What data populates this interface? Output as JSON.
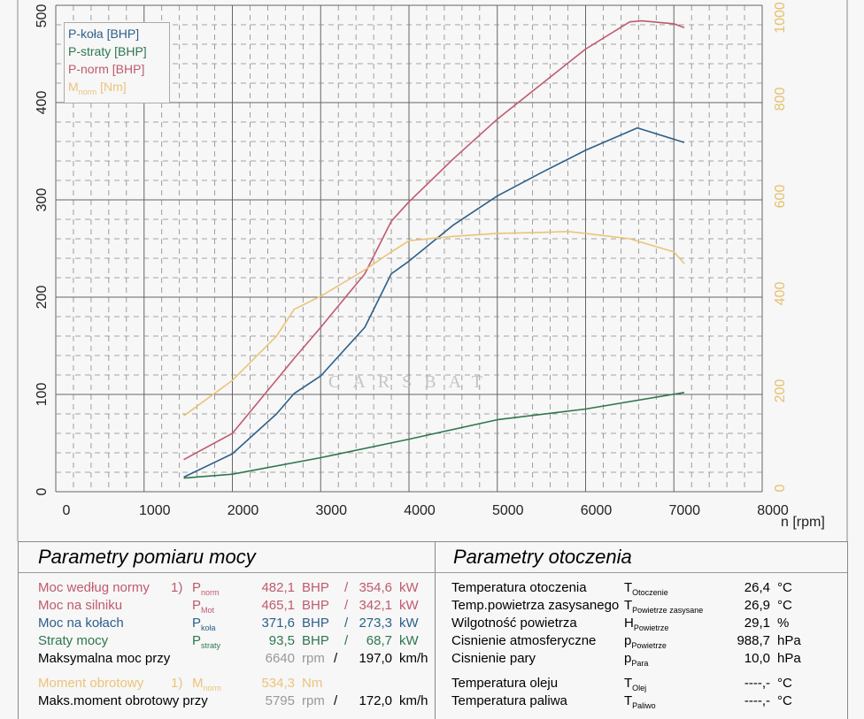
{
  "chart_data": {
    "type": "line",
    "xlabel": "n [rpm]",
    "xlim": [
      0,
      8000
    ],
    "x_ticks": [
      "0",
      "1000",
      "2000",
      "3000",
      "4000",
      "5000",
      "6000",
      "7000",
      "8000"
    ],
    "ylim": [
      0,
      500
    ],
    "y_ticks": [
      "0",
      "100",
      "200",
      "300",
      "400",
      "500"
    ],
    "y2lim": [
      0,
      1000
    ],
    "y2_ticks": [
      "0",
      "200",
      "400",
      "600",
      "800",
      "1000"
    ],
    "grid": true,
    "legend_position": "top-left",
    "legend": [
      "P-koła [BHP]",
      "P-straty [BHP]",
      "P-norm [BHP]",
      "Mnorm [Nm]"
    ],
    "watermark": "CARSBAT",
    "series": [
      {
        "name": "P-koła [BHP]",
        "axis": "left",
        "color": "#2e5f8a",
        "x": [
          1450,
          2000,
          2500,
          2700,
          3000,
          3500,
          3800,
          4000,
          4500,
          5000,
          5500,
          6000,
          6586,
          7118
        ],
        "y": [
          15,
          39,
          80,
          101,
          119,
          169,
          224,
          237,
          274,
          304,
          328,
          351,
          374,
          359
        ]
      },
      {
        "name": "P-straty [BHP]",
        "axis": "left",
        "color": "#2f7650",
        "x": [
          1450,
          2000,
          3000,
          4000,
          5000,
          6000,
          7118
        ],
        "y": [
          14,
          18,
          35,
          54,
          74,
          85,
          102
        ]
      },
      {
        "name": "P-norm [BHP]",
        "axis": "left",
        "color": "#c05a6e",
        "x": [
          1450,
          2000,
          2500,
          2700,
          3000,
          3500,
          3800,
          4000,
          4500,
          5000,
          5500,
          6000,
          6500,
          6640,
          7000,
          7118
        ],
        "y": [
          33,
          60,
          115,
          137,
          169,
          224,
          278,
          298,
          342,
          383,
          419,
          455,
          483,
          484,
          481,
          477
        ]
      },
      {
        "name": "Mnorm [Nm]",
        "axis": "right",
        "color": "#ecc37a",
        "x": [
          1450,
          2000,
          2500,
          2700,
          3000,
          3500,
          3800,
          4000,
          4500,
          5000,
          5500,
          5800,
          6000,
          6500,
          7000,
          7118
        ],
        "y": [
          156,
          229,
          320,
          375,
          402,
          456,
          493,
          516,
          525,
          531,
          533,
          535,
          531,
          520,
          493,
          469
        ]
      }
    ]
  },
  "legend_labels": {
    "p_kola": "P-koła [BHP]",
    "p_straty": "P-straty [BHP]",
    "p_norm": "P-norm [BHP]",
    "m_main": "M",
    "m_sub": "norm",
    "m_unit": " [Nm]"
  },
  "power": {
    "title": "Parametry pomiaru mocy",
    "rows": [
      {
        "label": "Moc według normy",
        "note": "1)",
        "sym": "P",
        "sub": "norm",
        "v1": "482,1",
        "u1": "BHP",
        "sep": "/",
        "v2": "354,6",
        "u2": "kW",
        "color": "#c05a6e"
      },
      {
        "label": "Moc na silniku",
        "note": "",
        "sym": "P",
        "sub": "Mot",
        "v1": "465,1",
        "u1": "BHP",
        "sep": "/",
        "v2": "342,1",
        "u2": "kW",
        "color": "#c05a6e"
      },
      {
        "label": "Moc na kołach",
        "note": "",
        "sym": "P",
        "sub": "koła",
        "v1": "371,6",
        "u1": "BHP",
        "sep": "/",
        "v2": "273,3",
        "u2": "kW",
        "color": "#2e5f8a"
      },
      {
        "label": "Straty mocy",
        "note": "",
        "sym": "P",
        "sub": "straty",
        "v1": "93,5",
        "u1": "BHP",
        "sep": "/",
        "v2": "68,7",
        "u2": "kW",
        "color": "#2f7650"
      }
    ],
    "max_power": {
      "label": "Maksymalna moc przy",
      "rpm": "6640",
      "rpm_unit": "rpm",
      "sep": "/",
      "speed": "197,0",
      "speed_unit": "km/h"
    },
    "torque": {
      "label": "Moment obrotowy",
      "note": "1)",
      "sym": "M",
      "sub": "norm",
      "value": "534,3",
      "unit": "Nm"
    },
    "max_torque": {
      "label": "Maks.moment obrotowy przy",
      "rpm": "5795",
      "rpm_unit": "rpm",
      "sep": "/",
      "speed": "172,0",
      "speed_unit": "km/h"
    }
  },
  "ambient": {
    "title": "Parametry otoczenia",
    "rows": [
      {
        "label": "Temperatura otoczenia",
        "sym": "T",
        "sub": "Otoczenie",
        "value": "26,4",
        "unit": "°C"
      },
      {
        "label": "Temp.powietrza zasysanego",
        "sym": "T",
        "sub": "Powietrze zasysane",
        "value": "26,9",
        "unit": "°C"
      },
      {
        "label": "Wilgotność powietrza",
        "sym": "H",
        "sub": "Powietrze",
        "value": "29,1",
        "unit": "%"
      },
      {
        "label": "Cisnienie atmosferyczne",
        "sym": "p",
        "sub": "Powietrze",
        "value": "988,7",
        "unit": "hPa"
      },
      {
        "label": "Cisnienie pary",
        "sym": "p",
        "sub": "Para",
        "value": "10,0",
        "unit": "hPa"
      },
      {
        "label": "Temperatura oleju",
        "sym": "T",
        "sub": "Olej",
        "value": "----,-",
        "unit": "°C"
      },
      {
        "label": "Temperatura paliwa",
        "sym": "T",
        "sub": "Paliwo",
        "value": "----,-",
        "unit": "°C"
      }
    ]
  }
}
